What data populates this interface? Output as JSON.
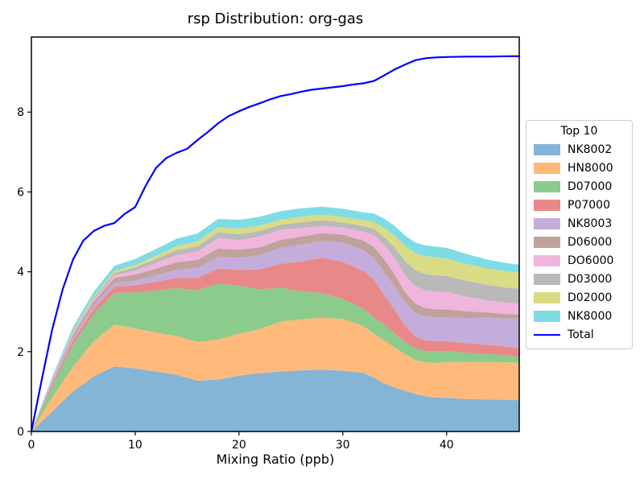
{
  "chart_data": {
    "type": "area",
    "stacked": true,
    "title": "rsp Distribution: org-gas",
    "xlabel": "Mixing Ratio (ppb)",
    "ylabel": "",
    "xlim": [
      0,
      47
    ],
    "ylim": [
      0,
      9.88
    ],
    "xticks": [
      0,
      10,
      20,
      30,
      40
    ],
    "yticks": [
      0,
      2,
      4,
      6,
      8
    ],
    "grid": false,
    "legend": {
      "title": "Top 10",
      "position": "outside-right",
      "total_label": "Total"
    },
    "x": [
      0,
      2,
      4,
      6,
      8,
      10,
      12,
      14,
      16,
      18,
      20,
      22,
      24,
      26,
      28,
      30,
      32,
      33,
      34,
      35,
      36,
      37,
      38,
      39,
      40,
      42,
      44,
      46,
      47
    ],
    "series": [
      {
        "name": "NK8002",
        "color": "#84B4D6",
        "values": [
          0,
          0.5,
          1.0,
          1.38,
          1.63,
          1.58,
          1.5,
          1.42,
          1.27,
          1.3,
          1.4,
          1.46,
          1.5,
          1.53,
          1.55,
          1.52,
          1.47,
          1.35,
          1.2,
          1.1,
          1.02,
          0.94,
          0.88,
          0.85,
          0.84,
          0.81,
          0.8,
          0.79,
          0.78
        ]
      },
      {
        "name": "HN8000",
        "color": "#FFB97A",
        "values": [
          0,
          0.35,
          0.62,
          0.88,
          1.05,
          1.0,
          0.98,
          0.97,
          0.97,
          1.0,
          1.05,
          1.1,
          1.25,
          1.28,
          1.3,
          1.3,
          1.17,
          1.1,
          1.08,
          1.0,
          0.92,
          0.85,
          0.85,
          0.87,
          0.9,
          0.93,
          0.94,
          0.94,
          0.94
        ]
      },
      {
        "name": "D07000",
        "color": "#8BCB8B",
        "values": [
          0,
          0.28,
          0.55,
          0.68,
          0.79,
          0.9,
          1.05,
          1.2,
          1.3,
          1.4,
          1.2,
          1.0,
          0.85,
          0.7,
          0.62,
          0.5,
          0.43,
          0.41,
          0.4,
          0.35,
          0.3,
          0.29,
          0.28,
          0.28,
          0.27,
          0.23,
          0.2,
          0.17,
          0.15
        ]
      },
      {
        "name": "P07000",
        "color": "#E88889",
        "values": [
          0,
          0.06,
          0.1,
          0.13,
          0.16,
          0.18,
          0.22,
          0.26,
          0.3,
          0.38,
          0.4,
          0.5,
          0.6,
          0.75,
          0.88,
          0.93,
          0.95,
          0.94,
          0.73,
          0.6,
          0.4,
          0.29,
          0.27,
          0.26,
          0.25,
          0.24,
          0.23,
          0.22,
          0.22
        ]
      },
      {
        "name": "NK8003",
        "color": "#C4ACDB",
        "values": [
          0,
          0.04,
          0.07,
          0.08,
          0.09,
          0.12,
          0.16,
          0.2,
          0.26,
          0.3,
          0.3,
          0.35,
          0.4,
          0.42,
          0.42,
          0.48,
          0.52,
          0.54,
          0.58,
          0.58,
          0.59,
          0.6,
          0.6,
          0.6,
          0.6,
          0.63,
          0.68,
          0.71,
          0.74
        ]
      },
      {
        "name": "D06000",
        "color": "#C0A29C",
        "values": [
          0,
          0.04,
          0.08,
          0.1,
          0.13,
          0.15,
          0.17,
          0.19,
          0.2,
          0.2,
          0.2,
          0.2,
          0.2,
          0.2,
          0.2,
          0.2,
          0.24,
          0.28,
          0.32,
          0.3,
          0.26,
          0.23,
          0.21,
          0.2,
          0.2,
          0.17,
          0.13,
          0.11,
          0.1
        ]
      },
      {
        "name": "DO6000",
        "color": "#EFB5DD",
        "values": [
          0,
          0.02,
          0.04,
          0.05,
          0.06,
          0.1,
          0.14,
          0.18,
          0.2,
          0.26,
          0.24,
          0.27,
          0.25,
          0.22,
          0.18,
          0.18,
          0.22,
          0.3,
          0.36,
          0.4,
          0.42,
          0.44,
          0.44,
          0.44,
          0.43,
          0.36,
          0.3,
          0.28,
          0.27
        ]
      },
      {
        "name": "D03000",
        "color": "#B9B9B9",
        "values": [
          0,
          0.02,
          0.04,
          0.05,
          0.06,
          0.08,
          0.1,
          0.12,
          0.14,
          0.15,
          0.15,
          0.14,
          0.13,
          0.14,
          0.14,
          0.13,
          0.14,
          0.16,
          0.2,
          0.28,
          0.36,
          0.4,
          0.41,
          0.41,
          0.4,
          0.4,
          0.39,
          0.38,
          0.38
        ]
      },
      {
        "name": "D02000",
        "color": "#DADB85",
        "values": [
          0,
          0.01,
          0.03,
          0.04,
          0.05,
          0.06,
          0.08,
          0.1,
          0.12,
          0.13,
          0.14,
          0.14,
          0.12,
          0.14,
          0.14,
          0.14,
          0.15,
          0.17,
          0.22,
          0.3,
          0.38,
          0.42,
          0.45,
          0.45,
          0.44,
          0.42,
          0.41,
          0.4,
          0.4
        ]
      },
      {
        "name": "NK8000",
        "color": "#7FDCE5",
        "values": [
          0,
          0.05,
          0.09,
          0.11,
          0.13,
          0.15,
          0.17,
          0.19,
          0.2,
          0.21,
          0.22,
          0.22,
          0.22,
          0.21,
          0.2,
          0.2,
          0.2,
          0.21,
          0.24,
          0.24,
          0.26,
          0.27,
          0.27,
          0.27,
          0.27,
          0.25,
          0.22,
          0.21,
          0.2
        ]
      }
    ],
    "total": {
      "name": "Total",
      "color": "#0000FF",
      "x": [
        0,
        1,
        2,
        3,
        4,
        5,
        6,
        7,
        8,
        9,
        10,
        11,
        12,
        13,
        14,
        15,
        16,
        17,
        18,
        19,
        20,
        21,
        22,
        23,
        24,
        25,
        26,
        27,
        28,
        29,
        30,
        31,
        32,
        33,
        34,
        35,
        36,
        37,
        38,
        39,
        40,
        42,
        44,
        46,
        47
      ],
      "values": [
        0,
        1.3,
        2.55,
        3.55,
        4.3,
        4.78,
        5.02,
        5.15,
        5.22,
        5.45,
        5.62,
        6.15,
        6.6,
        6.85,
        6.98,
        7.08,
        7.3,
        7.5,
        7.72,
        7.9,
        8.02,
        8.13,
        8.22,
        8.32,
        8.4,
        8.45,
        8.51,
        8.56,
        8.59,
        8.62,
        8.65,
        8.69,
        8.72,
        8.78,
        8.92,
        9.07,
        9.19,
        9.3,
        9.35,
        9.37,
        9.38,
        9.39,
        9.39,
        9.4,
        9.4
      ]
    }
  }
}
